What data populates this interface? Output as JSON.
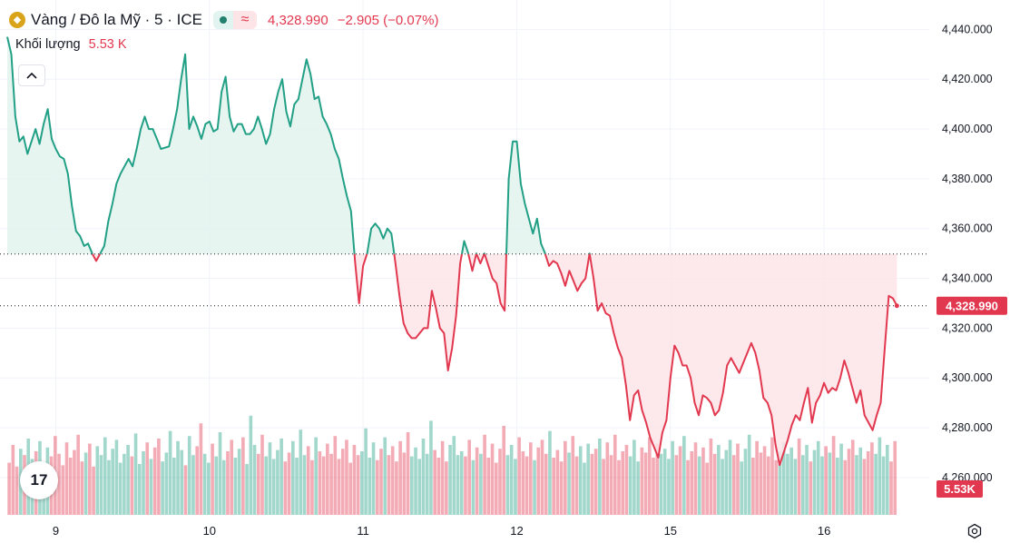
{
  "legend": {
    "symbol": "Vàng / Đô la Mỹ · 5 · ICE",
    "logo_icon": "gold-coin-icon",
    "status_icon": "market-status-dot-icon",
    "wave_symbol": "≈",
    "price": "4,328.990",
    "change": "−2.905 (−0.07%)"
  },
  "volume": {
    "label": "Khối lượng",
    "value": "5.53 K"
  },
  "price_tag": "4,328.990",
  "volume_tag": "5.53K",
  "tv_logo_text": "17",
  "colors": {
    "up": "#22a086",
    "down": "#e2384f",
    "up_fill": "#e3f3ee",
    "down_fill": "#fde4e7",
    "grid": "#f0f3fa",
    "axis_text": "#131722",
    "reference": "#131722"
  },
  "chart_data": {
    "type": "area",
    "y_axis": {
      "ticks": [
        "4,440.000",
        "4,420.000",
        "4,400.000",
        "4,380.000",
        "4,360.000",
        "4,340.000",
        "4,320.000",
        "4,300.000",
        "4,280.000",
        "4,260.000"
      ],
      "tick_values": [
        4440,
        4420,
        4400,
        4380,
        4360,
        4340,
        4320,
        4300,
        4280,
        4260
      ],
      "ylim": [
        4245,
        4450
      ]
    },
    "x_axis": {
      "labels": [
        "9",
        "10",
        "11",
        "12",
        "15",
        "16"
      ],
      "label_positions": [
        6,
        25,
        44,
        63,
        82,
        101
      ],
      "xlim": [
        0,
        114
      ]
    },
    "baseline": 4349.8,
    "current_price": 4328.99,
    "price_series": [
      [
        0,
        4437
      ],
      [
        0.5,
        4430
      ],
      [
        1,
        4405
      ],
      [
        1.5,
        4395
      ],
      [
        2,
        4397
      ],
      [
        2.5,
        4390
      ],
      [
        3,
        4395
      ],
      [
        3.5,
        4400
      ],
      [
        4,
        4394
      ],
      [
        4.5,
        4402
      ],
      [
        5,
        4408
      ],
      [
        5.5,
        4396
      ],
      [
        6,
        4392
      ],
      [
        6.5,
        4389
      ],
      [
        7,
        4388
      ],
      [
        7.5,
        4382
      ],
      [
        8,
        4369
      ],
      [
        8.5,
        4359
      ],
      [
        9,
        4357
      ],
      [
        9.5,
        4353
      ],
      [
        10,
        4354
      ],
      [
        10.5,
        4350
      ],
      [
        11,
        4347
      ],
      [
        12,
        4353
      ],
      [
        12.5,
        4363
      ],
      [
        13,
        4370
      ],
      [
        13.5,
        4378
      ],
      [
        14,
        4382
      ],
      [
        14.5,
        4385
      ],
      [
        15,
        4388
      ],
      [
        15.5,
        4385
      ],
      [
        16,
        4392
      ],
      [
        16.5,
        4400
      ],
      [
        17,
        4405
      ],
      [
        17.5,
        4400
      ],
      [
        18,
        4400
      ],
      [
        18.5,
        4396
      ],
      [
        19,
        4392
      ],
      [
        20,
        4393
      ],
      [
        20.5,
        4400
      ],
      [
        21,
        4408
      ],
      [
        21.5,
        4420
      ],
      [
        22,
        4430
      ],
      [
        22.5,
        4400
      ],
      [
        23,
        4405
      ],
      [
        23.5,
        4401
      ],
      [
        24,
        4396
      ],
      [
        24.5,
        4402
      ],
      [
        25,
        4403
      ],
      [
        25.5,
        4399
      ],
      [
        26,
        4400
      ],
      [
        26.5,
        4415
      ],
      [
        27,
        4421
      ],
      [
        27.5,
        4405
      ],
      [
        28,
        4399
      ],
      [
        28.5,
        4402
      ],
      [
        29,
        4402
      ],
      [
        29.5,
        4398
      ],
      [
        30,
        4398
      ],
      [
        30.5,
        4400
      ],
      [
        31,
        4405
      ],
      [
        31.5,
        4400
      ],
      [
        32,
        4394
      ],
      [
        32.5,
        4398
      ],
      [
        33,
        4408
      ],
      [
        33.5,
        4415
      ],
      [
        34,
        4420
      ],
      [
        34.5,
        4407
      ],
      [
        35,
        4401
      ],
      [
        35.5,
        4410
      ],
      [
        36,
        4412
      ],
      [
        36.5,
        4420
      ],
      [
        37,
        4428
      ],
      [
        37.5,
        4422
      ],
      [
        38,
        4412
      ],
      [
        38.5,
        4413
      ],
      [
        39,
        4405
      ],
      [
        39.5,
        4402
      ],
      [
        40,
        4398
      ],
      [
        40.5,
        4392
      ],
      [
        41,
        4388
      ],
      [
        41.5,
        4380
      ],
      [
        42,
        4373
      ],
      [
        42.5,
        4367
      ],
      [
        43,
        4347
      ],
      [
        43.5,
        4330
      ],
      [
        44,
        4345
      ],
      [
        44.5,
        4350
      ],
      [
        45,
        4360
      ],
      [
        45.5,
        4362
      ],
      [
        46,
        4360
      ],
      [
        46.5,
        4356
      ],
      [
        47,
        4360
      ],
      [
        47.5,
        4358
      ],
      [
        48,
        4346
      ],
      [
        48.5,
        4333
      ],
      [
        49,
        4322
      ],
      [
        49.5,
        4318
      ],
      [
        50,
        4316
      ],
      [
        50.5,
        4316
      ],
      [
        51,
        4318
      ],
      [
        51.5,
        4320
      ],
      [
        52,
        4320
      ],
      [
        52.5,
        4335
      ],
      [
        53,
        4328
      ],
      [
        53.5,
        4320
      ],
      [
        54,
        4318
      ],
      [
        54.5,
        4303
      ],
      [
        55,
        4312
      ],
      [
        55.5,
        4325
      ],
      [
        56,
        4346
      ],
      [
        56.5,
        4355
      ],
      [
        57,
        4350
      ],
      [
        57.5,
        4343
      ],
      [
        58,
        4350
      ],
      [
        58.5,
        4346
      ],
      [
        59,
        4350
      ],
      [
        59.5,
        4345
      ],
      [
        60,
        4340
      ],
      [
        60.5,
        4338
      ],
      [
        61,
        4330
      ],
      [
        61.5,
        4327
      ],
      [
        62,
        4380
      ],
      [
        62.5,
        4395
      ],
      [
        63,
        4395
      ],
      [
        63.5,
        4378
      ],
      [
        64,
        4370
      ],
      [
        64.5,
        4364
      ],
      [
        65,
        4358
      ],
      [
        65.5,
        4364
      ],
      [
        66,
        4354
      ],
      [
        66.5,
        4350
      ],
      [
        67,
        4345
      ],
      [
        67.5,
        4347
      ],
      [
        68,
        4346
      ],
      [
        68.5,
        4342
      ],
      [
        69,
        4337
      ],
      [
        69.5,
        4343
      ],
      [
        70,
        4339
      ],
      [
        70.5,
        4335
      ],
      [
        71,
        4338
      ],
      [
        71.5,
        4340
      ],
      [
        72,
        4350
      ],
      [
        72.5,
        4340
      ],
      [
        73,
        4327
      ],
      [
        73.5,
        4330
      ],
      [
        74,
        4326
      ],
      [
        74.5,
        4325
      ],
      [
        75,
        4318
      ],
      [
        75.5,
        4312
      ],
      [
        76,
        4308
      ],
      [
        76.5,
        4297
      ],
      [
        77,
        4283
      ],
      [
        77.5,
        4293
      ],
      [
        78,
        4295
      ],
      [
        78.5,
        4287
      ],
      [
        79,
        4282
      ],
      [
        79.5,
        4276
      ],
      [
        80,
        4272
      ],
      [
        80.5,
        4268
      ],
      [
        81,
        4278
      ],
      [
        81.5,
        4283
      ],
      [
        82,
        4300
      ],
      [
        82.5,
        4313
      ],
      [
        83,
        4310
      ],
      [
        83.5,
        4305
      ],
      [
        84,
        4305
      ],
      [
        84.5,
        4300
      ],
      [
        85,
        4290
      ],
      [
        85.5,
        4285
      ],
      [
        86,
        4293
      ],
      [
        86.5,
        4292
      ],
      [
        87,
        4290
      ],
      [
        87.5,
        4285
      ],
      [
        88,
        4287
      ],
      [
        88.5,
        4294
      ],
      [
        89,
        4305
      ],
      [
        89.5,
        4308
      ],
      [
        90,
        4305
      ],
      [
        90.5,
        4302
      ],
      [
        91,
        4306
      ],
      [
        91.5,
        4310
      ],
      [
        92,
        4314
      ],
      [
        92.5,
        4310
      ],
      [
        93,
        4303
      ],
      [
        93.5,
        4292
      ],
      [
        94,
        4290
      ],
      [
        94.5,
        4285
      ],
      [
        95,
        4273
      ],
      [
        95.5,
        4265
      ],
      [
        96,
        4270
      ],
      [
        96.5,
        4275
      ],
      [
        97,
        4281
      ],
      [
        97.5,
        4285
      ],
      [
        98,
        4283
      ],
      [
        98.5,
        4290
      ],
      [
        99,
        4296
      ],
      [
        99.5,
        4282
      ],
      [
        100,
        4290
      ],
      [
        100.5,
        4293
      ],
      [
        101,
        4298
      ],
      [
        101.5,
        4294
      ],
      [
        102,
        4296
      ],
      [
        102.5,
        4295
      ],
      [
        103,
        4300
      ],
      [
        103.5,
        4307
      ],
      [
        104,
        4302
      ],
      [
        104.5,
        4296
      ],
      [
        105,
        4290
      ],
      [
        105.5,
        4295
      ],
      [
        106,
        4285
      ],
      [
        106.5,
        4282
      ],
      [
        107,
        4279
      ],
      [
        107.5,
        4285
      ],
      [
        108,
        4290
      ],
      [
        108.5,
        4312
      ],
      [
        109,
        4333
      ],
      [
        109.5,
        4332
      ],
      [
        110,
        4329
      ]
    ],
    "volume_series": {
      "ylim": [
        0,
        100
      ],
      "values": [
        41,
        55,
        38,
        52,
        47,
        60,
        44,
        50,
        58,
        40,
        53,
        46,
        62,
        48,
        39,
        57,
        45,
        51,
        63,
        42,
        49,
        56,
        38,
        54,
        47,
        61,
        43,
        52,
        59,
        41,
        48,
        55,
        46,
        64,
        40,
        50,
        57,
        44,
        53,
        60,
        42,
        49,
        66,
        45,
        58,
        51,
        39,
        62,
        47,
        54,
        72,
        48,
        41,
        56,
        46,
        65,
        43,
        50,
        59,
        45,
        52,
        61,
        40,
        78,
        55,
        48,
        63,
        46,
        57,
        44,
        51,
        60,
        42,
        49,
        58,
        45,
        67,
        47,
        54,
        43,
        61,
        50,
        46,
        56,
        48,
        62,
        44,
        52,
        59,
        41,
        55,
        47,
        50,
        68,
        45,
        57,
        43,
        52,
        61,
        47,
        54,
        42,
        58,
        49,
        65,
        46,
        53,
        44,
        60,
        48,
        74,
        51,
        45,
        58,
        42,
        55,
        62,
        47,
        50,
        46,
        59,
        43,
        53,
        48,
        63,
        45,
        56,
        41,
        52,
        70,
        47,
        55,
        44,
        61,
        50,
        46,
        57,
        43,
        53,
        59,
        48,
        66,
        45,
        51,
        42,
        58,
        49,
        62,
        46,
        54,
        41,
        56,
        48,
        52,
        60,
        44,
        57,
        47,
        63,
        43,
        50,
        55,
        46,
        59,
        42,
        53,
        49,
        61,
        45,
        56,
        48,
        52,
        44,
        58,
        47,
        54,
        62,
        43,
        50,
        57,
        46,
        53,
        41,
        60,
        48,
        55,
        44,
        51,
        59,
        47,
        56,
        42,
        52,
        63,
        45,
        58,
        49,
        54,
        46,
        61,
        43,
        50,
        57,
        48,
        53,
        44,
        60,
        47,
        55,
        42,
        51,
        58,
        46,
        54,
        49,
        62,
        45,
        56,
        43,
        52,
        59,
        47,
        53,
        44,
        50,
        57,
        48,
        61,
        46,
        55,
        42,
        58
      ]
    }
  }
}
